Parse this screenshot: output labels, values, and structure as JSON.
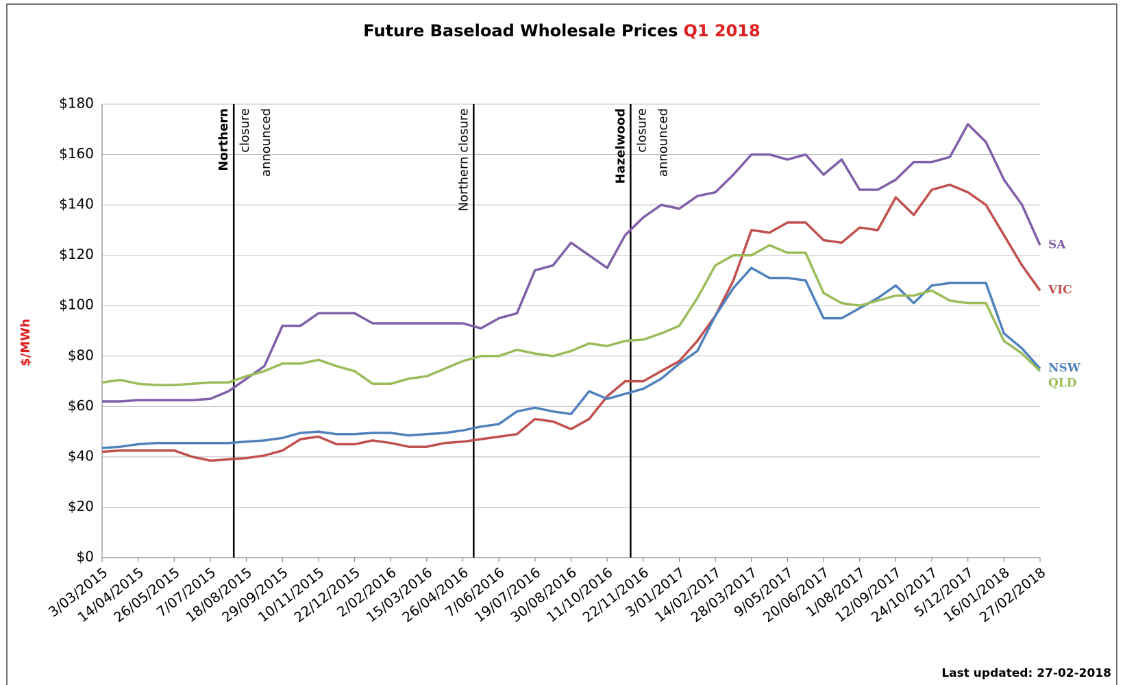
{
  "chart_data": {
    "type": "line",
    "title": "Future Baseload Wholesale Prices",
    "title_highlight": "Q1 2018",
    "y_label": "$/MWh",
    "footer": "Last updated: 27-02-2018",
    "categories": [
      "3/03/2015",
      null,
      "14/04/2015",
      null,
      "26/05/2015",
      null,
      "7/07/2015",
      null,
      "18/08/2015",
      null,
      "29/09/2015",
      null,
      "10/11/2015",
      null,
      "22/12/2015",
      null,
      "2/02/2016",
      null,
      "15/03/2016",
      null,
      "26/04/2016",
      null,
      "7/06/2016",
      null,
      "19/07/2016",
      null,
      "30/08/2016",
      null,
      "11/10/2016",
      null,
      "22/11/2016",
      null,
      "3/01/2017",
      null,
      "14/02/2017",
      null,
      "28/03/2017",
      null,
      "9/05/2017",
      null,
      "20/06/2017",
      null,
      "1/08/2017",
      null,
      "12/09/2017",
      null,
      "24/10/2017",
      null,
      "5/12/2017",
      null,
      "16/01/2018",
      null,
      "27/02/2018"
    ],
    "ylim": [
      0,
      180
    ],
    "yticks": [
      {
        "value": 0,
        "label": "$0"
      },
      {
        "value": 20,
        "label": "$20"
      },
      {
        "value": 40,
        "label": "$40"
      },
      {
        "value": 60,
        "label": "$60"
      },
      {
        "value": 80,
        "label": "$80"
      },
      {
        "value": 100,
        "label": "$100"
      },
      {
        "value": 120,
        "label": "$120"
      },
      {
        "value": 140,
        "label": "$140"
      },
      {
        "value": 160,
        "label": "$160"
      },
      {
        "value": 180,
        "label": "$180"
      }
    ],
    "grid": true,
    "series": [
      {
        "name": "SA",
        "color": "#7f5fa8",
        "values": [
          62,
          62,
          62.5,
          62.5,
          62.5,
          62.5,
          63,
          66,
          71,
          76,
          92,
          92,
          97,
          97,
          97,
          93,
          93,
          93,
          93,
          93,
          93,
          91,
          95,
          97,
          114,
          116,
          125,
          120,
          115,
          128,
          135,
          140,
          138.5,
          143.5,
          145,
          152,
          160,
          160,
          158,
          160,
          152,
          158,
          146,
          146,
          150,
          157,
          157,
          159,
          172,
          165,
          150,
          140,
          124
        ]
      },
      {
        "name": "VIC",
        "color": "#c0504d",
        "values": [
          42,
          42.5,
          42.5,
          42.5,
          42.5,
          40,
          38.5,
          39,
          39.5,
          40.5,
          42.5,
          47,
          48,
          45,
          45,
          46.5,
          45.5,
          44,
          44,
          45.5,
          46,
          47,
          48,
          49,
          55,
          54,
          51,
          55,
          64,
          70,
          70,
          74,
          78,
          86,
          96,
          110,
          130,
          129,
          133,
          133,
          126,
          125,
          131,
          130,
          143,
          136,
          146,
          148,
          145,
          140,
          128,
          116,
          106
        ]
      },
      {
        "name": "NSW",
        "color": "#4f81bd",
        "values": [
          43.5,
          44,
          45,
          45.5,
          45.5,
          45.5,
          45.5,
          45.5,
          46,
          46.5,
          47.5,
          49.5,
          50,
          49,
          49,
          49.5,
          49.5,
          48.5,
          49,
          49.5,
          50.5,
          52,
          53,
          58,
          59.5,
          58,
          57,
          66,
          63,
          65,
          67,
          71,
          77,
          82,
          96,
          107,
          115,
          111,
          111,
          110,
          95,
          95,
          99,
          103,
          108,
          101,
          108,
          109,
          109,
          109,
          89,
          83,
          75
        ]
      },
      {
        "name": "QLD",
        "color": "#9bbb59",
        "values": [
          69.5,
          70.5,
          69,
          68.5,
          68.5,
          69,
          69.5,
          69.5,
          72,
          74,
          77,
          77,
          78.5,
          76,
          74,
          69,
          69,
          71,
          72,
          75,
          78,
          80,
          80,
          82.5,
          81,
          80,
          82,
          85,
          84,
          86,
          86.5,
          89,
          92,
          103,
          116,
          120,
          120,
          124,
          121,
          121,
          105,
          101,
          100,
          102,
          104,
          104,
          106,
          102,
          101,
          101,
          86,
          81,
          74
        ]
      }
    ],
    "annotations": [
      {
        "x": 7.3,
        "lines": [
          {
            "text": "Northern",
            "bold": true
          },
          {
            "text": "closure",
            "bold": false
          },
          {
            "text": "announced",
            "bold": false
          }
        ]
      },
      {
        "x": 20.6,
        "lines": [
          {
            "text": "Northern closure",
            "bold": false
          }
        ]
      },
      {
        "x": 29.3,
        "lines": [
          {
            "text": "Hazelwood",
            "bold": true
          },
          {
            "text": "closure",
            "bold": false
          },
          {
            "text": "announced",
            "bold": false
          }
        ]
      }
    ]
  }
}
